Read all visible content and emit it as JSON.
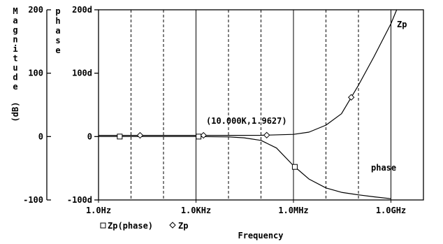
{
  "chart_data": {
    "type": "line",
    "x_scale": "log",
    "xlim": [
      1,
      10000000000
    ],
    "xlabel": "Frequency",
    "x_ticks": [
      {
        "value": 1,
        "label": "1.0Hz"
      },
      {
        "value": 1000,
        "label": "1.0KHz"
      },
      {
        "value": 1000000,
        "label": "1.0MHz"
      },
      {
        "value": 1000000000,
        "label": "1.0GHz"
      }
    ],
    "x_dashed_gridlines": [
      10,
      100,
      10000,
      100000,
      10000000,
      100000000
    ],
    "x_solid_gridlines": [
      1000,
      1000000,
      1000000000
    ],
    "left_axis": {
      "label_chars": [
        "M",
        "a",
        "g",
        "n",
        "i",
        "t",
        "u",
        "d",
        "e"
      ],
      "unit": "(dB)",
      "ylim": [
        -100,
        200
      ],
      "ticks": [
        {
          "value": 200,
          "label": "200"
        },
        {
          "value": 100,
          "label": "100"
        },
        {
          "value": 0,
          "label": "0"
        },
        {
          "value": -100,
          "label": "-100"
        }
      ]
    },
    "right_axis": {
      "label_chars": [
        "p",
        "h",
        "a",
        "s",
        "e"
      ],
      "ylim": [
        -100,
        200
      ],
      "ticks": [
        {
          "value": 200,
          "label": "200d"
        },
        {
          "value": 100,
          "label": "100d"
        },
        {
          "value": 0,
          "label": "0"
        },
        {
          "value": -100,
          "label": "-100d"
        }
      ]
    },
    "series": [
      {
        "name": "Zp",
        "marker": "diamond",
        "x": [
          1,
          10,
          100,
          1000,
          10000,
          100000,
          1000000,
          3000000,
          10000000,
          30000000,
          100000000,
          300000000,
          1000000000,
          1500000000
        ],
        "y": [
          1.96,
          1.96,
          1.96,
          1.96,
          1.96,
          1.97,
          3.5,
          7,
          18,
          36,
          81,
          126,
          178,
          200
        ],
        "marker_x": [
          19,
          1700,
          150000,
          60000000
        ]
      },
      {
        "name": "phase",
        "marker": "square",
        "x": [
          1,
          10,
          100,
          1000,
          10000,
          30000,
          100000,
          300000,
          1000000,
          3000000,
          10000000,
          30000000,
          100000000,
          300000000,
          1000000000
        ],
        "y": [
          0,
          0,
          0,
          0,
          -0.5,
          -2,
          -6,
          -18,
          -46,
          -67,
          -81,
          -88,
          -92,
          -95,
          -98
        ],
        "marker_x": [
          4.5,
          1200,
          1100000
        ]
      }
    ],
    "series_labels": [
      "Zp",
      "phase"
    ],
    "legend": {
      "position": "bottom-left",
      "entries": [
        "Zp(phase)",
        "Zp"
      ]
    },
    "annotation": {
      "text": "(10.000K,1.9627)",
      "x": 10000,
      "y": 1.9627
    }
  }
}
